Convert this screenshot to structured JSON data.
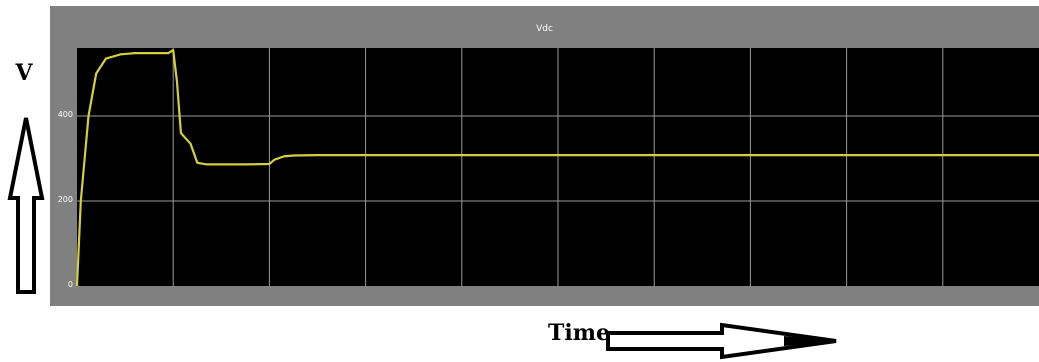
{
  "chart_data": {
    "type": "line",
    "title": "Vdc",
    "xlabel": "Time",
    "ylabel": "V",
    "ylim": [
      0,
      560
    ],
    "xlim": [
      0,
      1
    ],
    "yticks": [
      0,
      200,
      400
    ],
    "ytick_labels": [
      "0",
      "200",
      "400"
    ],
    "x_divisions": 10,
    "grid": true,
    "colors": {
      "background": "#000000",
      "frame": "#808080",
      "trace": "#d4cf3c",
      "grid": "#9a9a9a"
    },
    "series": [
      {
        "name": "",
        "x": [
          0,
          0.004,
          0.012,
          0.02,
          0.03,
          0.045,
          0.06,
          0.08,
          0.095,
          0.1,
          0.104,
          0.108,
          0.112,
          0.118,
          0.125,
          0.135,
          0.15,
          0.175,
          0.2,
          0.205,
          0.215,
          0.225,
          0.25,
          0.3,
          0.4,
          0.5,
          0.6,
          0.7,
          0.8,
          0.9,
          1.0
        ],
        "y": [
          0,
          200,
          400,
          500,
          535,
          545,
          548,
          548,
          548,
          555,
          480,
          360,
          350,
          335,
          290,
          286,
          286,
          286,
          287,
          297,
          305,
          307,
          308,
          308,
          308,
          308,
          308,
          308,
          308,
          308,
          308
        ]
      }
    ]
  },
  "annotations": {
    "v_label": "V",
    "time_label": "Time",
    "arrow_up": "up-arrow-icon",
    "arrow_right": "right-arrow-icon"
  }
}
